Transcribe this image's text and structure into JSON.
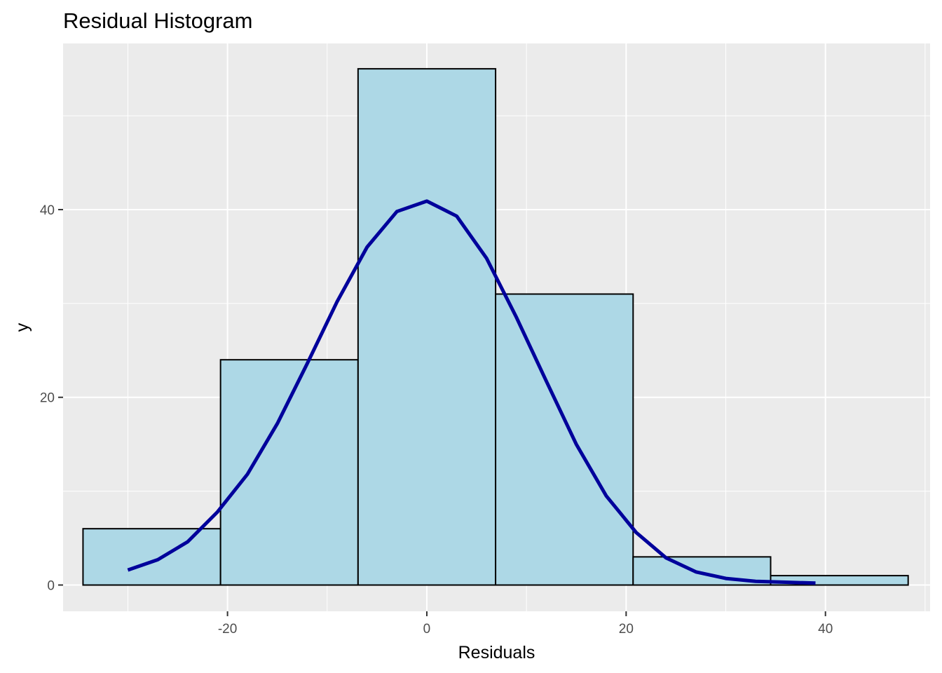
{
  "chart_data": {
    "type": "bar",
    "title": "Residual Histogram",
    "xlabel": "Residuals",
    "ylabel": "y",
    "xlim": [
      -36.5,
      50.5
    ],
    "ylim": [
      -2.8,
      57.7
    ],
    "x_ticks": [
      -20,
      0,
      20,
      40
    ],
    "y_ticks": [
      0,
      20,
      40
    ],
    "x_tick_labels": [
      "-20",
      "0",
      "20",
      "40"
    ],
    "y_tick_labels": [
      "0",
      "20",
      "40"
    ],
    "grid": true,
    "bins": [
      {
        "x0": -34.5,
        "x1": -20.7,
        "count": 6
      },
      {
        "x0": -20.7,
        "x1": -6.9,
        "count": 24
      },
      {
        "x0": -6.9,
        "x1": 6.9,
        "count": 55
      },
      {
        "x0": 6.9,
        "x1": 20.7,
        "count": 31
      },
      {
        "x0": 20.7,
        "x1": 34.5,
        "count": 3
      },
      {
        "x0": 34.5,
        "x1": 48.3,
        "count": 1
      }
    ],
    "curve": {
      "x": [
        -30,
        -27,
        -24,
        -21,
        -18,
        -15,
        -12,
        -9,
        -6,
        -3,
        0,
        3,
        6,
        9,
        12,
        15,
        18,
        21,
        24,
        27,
        30,
        33,
        36,
        39
      ],
      "y": [
        1.6,
        2.7,
        4.6,
        7.8,
        11.8,
        17.2,
        23.6,
        30.2,
        36.0,
        39.8,
        40.9,
        39.3,
        34.8,
        28.5,
        21.7,
        15.0,
        9.5,
        5.6,
        2.9,
        1.4,
        0.7,
        0.4,
        0.3,
        0.2
      ],
      "color": "#00009b"
    },
    "colors": {
      "bar_fill": "#add8e6",
      "bar_stroke": "#000000",
      "panel": "#ebebeb",
      "grid": "#ffffff"
    }
  }
}
